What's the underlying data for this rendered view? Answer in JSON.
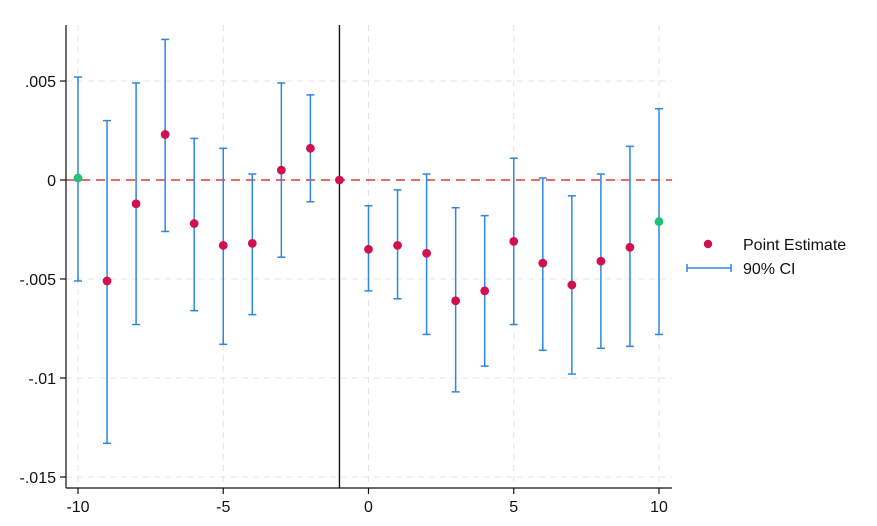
{
  "chart_data": {
    "type": "scatter",
    "title": "",
    "xlabel": "",
    "ylabel": "",
    "xlim": [
      -10,
      10
    ],
    "ylim": [
      -0.015,
      0.0075
    ],
    "grid": true,
    "legend_position": "right",
    "x_ticks": [
      -10,
      -5,
      0,
      5,
      10
    ],
    "x_tick_labels": [
      "-10",
      "-5",
      "0",
      "5",
      "10"
    ],
    "y_ticks": [
      -0.015,
      -0.01,
      -0.005,
      0,
      0.005
    ],
    "y_tick_labels": [
      "-.015",
      "-.01",
      "-.005",
      "0",
      ".005"
    ],
    "reference_lines": {
      "horizontal_zero": {
        "y": 0,
        "color": "#e03a3a",
        "style": "dashed"
      },
      "vertical_event": {
        "x": -1,
        "color": "#111111",
        "style": "solid"
      }
    },
    "series": [
      {
        "name": "Point Estimate",
        "kind": "points",
        "color": "#d1104f",
        "x": [
          -10,
          -9,
          -8,
          -7,
          -6,
          -5,
          -4,
          -3,
          -2,
          -1,
          0,
          1,
          2,
          3,
          4,
          5,
          6,
          7,
          8,
          9,
          10
        ],
        "y": [
          0.0001,
          -0.0051,
          -0.0012,
          0.0023,
          -0.0022,
          -0.0033,
          -0.0032,
          0.0005,
          0.0016,
          0.0,
          -0.0035,
          -0.0033,
          -0.0037,
          -0.0061,
          -0.0056,
          -0.0031,
          -0.0042,
          -0.0053,
          -0.0041,
          -0.0034,
          -0.0021
        ],
        "highlight_color": "#22c17a",
        "highlight_x": [
          -10,
          10
        ]
      },
      {
        "name": "90% CI",
        "kind": "error_bars",
        "color": "#2e86e0",
        "x": [
          -10,
          -9,
          -8,
          -7,
          -6,
          -5,
          -4,
          -3,
          -2,
          0,
          1,
          2,
          3,
          4,
          5,
          6,
          7,
          8,
          9,
          10
        ],
        "lower": [
          -0.0051,
          -0.0133,
          -0.0073,
          -0.0026,
          -0.0066,
          -0.0083,
          -0.0068,
          -0.0039,
          -0.0011,
          -0.0056,
          -0.006,
          -0.0078,
          -0.0107,
          -0.0094,
          -0.0073,
          -0.0086,
          -0.0098,
          -0.0085,
          -0.0084,
          -0.0078
        ],
        "upper": [
          0.0052,
          0.003,
          0.0049,
          0.0071,
          0.0021,
          0.0016,
          0.0003,
          0.0049,
          0.0043,
          -0.0013,
          -0.0005,
          0.0003,
          -0.0014,
          -0.0018,
          0.0011,
          0.0001,
          -0.0008,
          0.0003,
          0.0017,
          0.0036
        ]
      }
    ],
    "legend": [
      {
        "label": "Point Estimate",
        "symbol": "dot"
      },
      {
        "label": "90% CI",
        "symbol": "capped-line"
      }
    ]
  }
}
